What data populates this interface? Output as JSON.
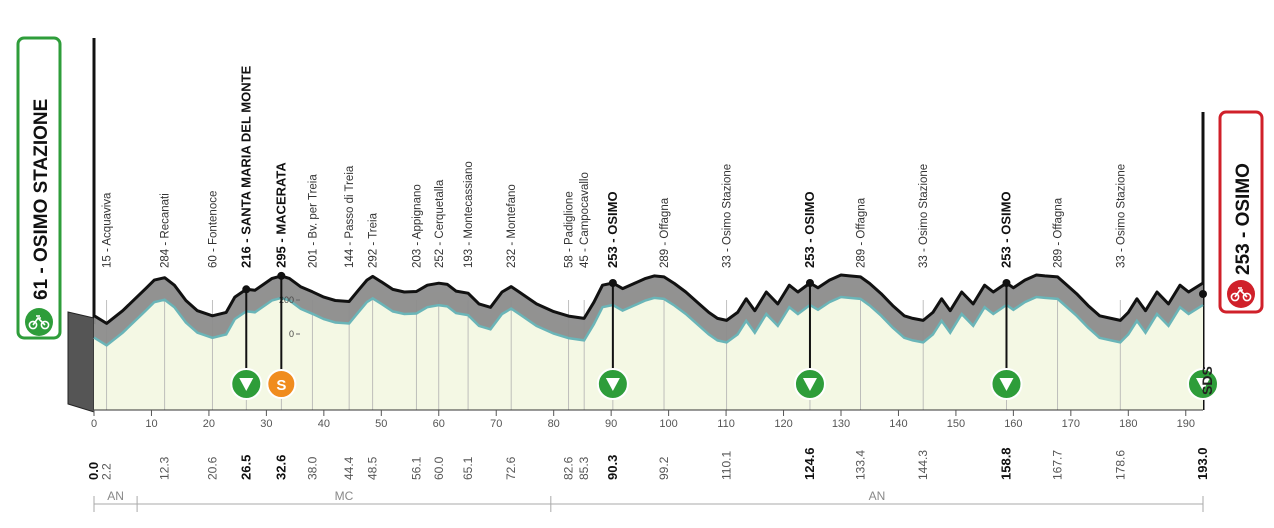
{
  "start": {
    "label": "61 - OSIMO STAZIONE",
    "color": "#2e9d3a"
  },
  "finish": {
    "label": "253 - OSIMO",
    "color": "#d0202a"
  },
  "logo": "SDS",
  "icons": {
    "start": "bicycle-icon",
    "finish": "bicycle-icon",
    "sprint": "sprint-s-icon",
    "intermediate": "triangle-down-icon"
  },
  "sprint_letter": "S",
  "colors": {
    "profile": "#8c8c8c",
    "profile_light": "#c9c9c9",
    "fill_green": "#f4f8e4",
    "teal": "#6ab5b8",
    "sprint_orange": "#f08c1e"
  },
  "chart_data": {
    "type": "area",
    "xlabel": "",
    "ylabel": "",
    "xlim": [
      0,
      193
    ],
    "y_ticks": [
      0,
      200
    ],
    "x_ticks": [
      0,
      10,
      20,
      30,
      40,
      50,
      60,
      70,
      80,
      90,
      100,
      110,
      120,
      130,
      140,
      150,
      160,
      170,
      180,
      190
    ],
    "distance_labels": [
      {
        "km": 0.0,
        "text": "0.0",
        "bold": true
      },
      {
        "km": 2.2,
        "text": "2.2",
        "bold": false
      },
      {
        "km": 12.3,
        "text": "12.3",
        "bold": false
      },
      {
        "km": 20.6,
        "text": "20.6",
        "bold": false
      },
      {
        "km": 26.5,
        "text": "26.5",
        "bold": true
      },
      {
        "km": 32.6,
        "text": "32.6",
        "bold": true
      },
      {
        "km": 38.0,
        "text": "38.0",
        "bold": false
      },
      {
        "km": 44.4,
        "text": "44.4",
        "bold": false
      },
      {
        "km": 48.5,
        "text": "48.5",
        "bold": false
      },
      {
        "km": 56.1,
        "text": "56.1",
        "bold": false
      },
      {
        "km": 60.0,
        "text": "60.0",
        "bold": false
      },
      {
        "km": 65.1,
        "text": "65.1",
        "bold": false
      },
      {
        "km": 72.6,
        "text": "72.6",
        "bold": false
      },
      {
        "km": 82.6,
        "text": "82.6",
        "bold": false
      },
      {
        "km": 85.3,
        "text": "85.3",
        "bold": false
      },
      {
        "km": 90.3,
        "text": "90.3",
        "bold": true
      },
      {
        "km": 99.2,
        "text": "99.2",
        "bold": false
      },
      {
        "km": 110.1,
        "text": "110.1",
        "bold": false
      },
      {
        "km": 124.6,
        "text": "124.6",
        "bold": true
      },
      {
        "km": 133.4,
        "text": "133.4",
        "bold": false
      },
      {
        "km": 144.3,
        "text": "144.3",
        "bold": false
      },
      {
        "km": 158.8,
        "text": "158.8",
        "bold": true
      },
      {
        "km": 167.7,
        "text": "167.7",
        "bold": false
      },
      {
        "km": 178.6,
        "text": "178.6",
        "bold": false
      },
      {
        "km": 193.0,
        "text": "193.0",
        "bold": true
      }
    ],
    "waypoints": [
      {
        "km": 2.2,
        "text": "15 - Acquaviva",
        "bold": false
      },
      {
        "km": 12.3,
        "text": "284 - Recanati",
        "bold": false
      },
      {
        "km": 20.6,
        "text": "60 - Fontenoce",
        "bold": false
      },
      {
        "km": 26.5,
        "text": "216 - SANTA MARIA DEL MONTE",
        "bold": true
      },
      {
        "km": 32.6,
        "text": "295 - MACERATA",
        "bold": true
      },
      {
        "km": 38.0,
        "text": "201 - Bv. per Treia",
        "bold": false
      },
      {
        "km": 44.4,
        "text": "144 - Passo di Treia",
        "bold": false
      },
      {
        "km": 48.5,
        "text": "292 - Treia",
        "bold": false
      },
      {
        "km": 56.1,
        "text": "203 - Appignano",
        "bold": false
      },
      {
        "km": 60.0,
        "text": "252 - Cerquetalla",
        "bold": false
      },
      {
        "km": 65.1,
        "text": "193 - Montecassiano",
        "bold": false
      },
      {
        "km": 72.6,
        "text": "232 - Montefano",
        "bold": false
      },
      {
        "km": 82.6,
        "text": "58 - Padiglione",
        "bold": false
      },
      {
        "km": 85.3,
        "text": "45 - Campocavallo",
        "bold": false
      },
      {
        "km": 90.3,
        "text": "253 - OSIMO",
        "bold": true
      },
      {
        "km": 99.2,
        "text": "289 - Offagna",
        "bold": false
      },
      {
        "km": 110.1,
        "text": "33 - Osimo Stazione",
        "bold": false
      },
      {
        "km": 124.6,
        "text": "253 - OSIMO",
        "bold": true
      },
      {
        "km": 133.4,
        "text": "289 - Offagna",
        "bold": false
      },
      {
        "km": 144.3,
        "text": "33 - Osimo Stazione",
        "bold": false
      },
      {
        "km": 158.8,
        "text": "253 - OSIMO",
        "bold": true
      },
      {
        "km": 167.7,
        "text": "289 - Offagna",
        "bold": false
      },
      {
        "km": 178.6,
        "text": "33 - Osimo Stazione",
        "bold": false
      }
    ],
    "intermediate_markers": [
      {
        "km": 26.5,
        "kind": "intermediate"
      },
      {
        "km": 32.6,
        "kind": "sprint"
      },
      {
        "km": 90.3,
        "kind": "intermediate"
      },
      {
        "km": 124.6,
        "kind": "intermediate"
      },
      {
        "km": 158.8,
        "kind": "intermediate"
      },
      {
        "km": 193.0,
        "kind": "intermediate"
      }
    ],
    "provinces": [
      {
        "from_km": 0,
        "to_km": 7.5,
        "text": "AN"
      },
      {
        "from_km": 7.5,
        "to_km": 79.5,
        "text": "MC"
      },
      {
        "from_km": 79.5,
        "to_km": 193,
        "text": "AN"
      }
    ],
    "profile": [
      [
        0,
        61
      ],
      [
        2.2,
        15
      ],
      [
        5,
        90
      ],
      [
        9,
        220
      ],
      [
        10.5,
        270
      ],
      [
        12.3,
        284
      ],
      [
        14,
        240
      ],
      [
        16,
        150
      ],
      [
        18,
        90
      ],
      [
        20.6,
        60
      ],
      [
        23,
        80
      ],
      [
        24.5,
        170
      ],
      [
        26.5,
        216
      ],
      [
        28,
        210
      ],
      [
        29.5,
        245
      ],
      [
        31,
        280
      ],
      [
        32.6,
        295
      ],
      [
        34,
        280
      ],
      [
        36,
        230
      ],
      [
        38,
        201
      ],
      [
        40,
        170
      ],
      [
        42,
        150
      ],
      [
        44.4,
        144
      ],
      [
        46,
        210
      ],
      [
        47.5,
        270
      ],
      [
        48.5,
        292
      ],
      [
        50,
        260
      ],
      [
        52,
        215
      ],
      [
        54,
        200
      ],
      [
        56.1,
        203
      ],
      [
        58,
        240
      ],
      [
        60,
        252
      ],
      [
        61.5,
        245
      ],
      [
        63,
        205
      ],
      [
        65.1,
        193
      ],
      [
        67,
        130
      ],
      [
        69,
        110
      ],
      [
        71,
        200
      ],
      [
        72.6,
        232
      ],
      [
        74,
        200
      ],
      [
        77,
        130
      ],
      [
        80,
        85
      ],
      [
        82.6,
        58
      ],
      [
        85.3,
        45
      ],
      [
        87,
        140
      ],
      [
        88.5,
        240
      ],
      [
        90.3,
        253
      ],
      [
        92,
        220
      ],
      [
        94,
        250
      ],
      [
        96,
        280
      ],
      [
        97.5,
        295
      ],
      [
        99.2,
        289
      ],
      [
        101,
        250
      ],
      [
        103,
        200
      ],
      [
        105,
        140
      ],
      [
        107,
        80
      ],
      [
        108.5,
        45
      ],
      [
        110.1,
        33
      ],
      [
        112,
        80
      ],
      [
        113.5,
        160
      ],
      [
        115,
        90
      ],
      [
        117,
        200
      ],
      [
        119,
        130
      ],
      [
        121,
        240
      ],
      [
        122.5,
        200
      ],
      [
        124.6,
        253
      ],
      [
        126,
        225
      ],
      [
        128,
        270
      ],
      [
        130,
        300
      ],
      [
        131.5,
        295
      ],
      [
        133.4,
        289
      ],
      [
        135,
        250
      ],
      [
        137,
        190
      ],
      [
        139,
        120
      ],
      [
        141,
        60
      ],
      [
        142.5,
        45
      ],
      [
        144.3,
        33
      ],
      [
        146,
        80
      ],
      [
        147.5,
        160
      ],
      [
        149,
        90
      ],
      [
        151,
        200
      ],
      [
        153,
        130
      ],
      [
        155,
        240
      ],
      [
        156.5,
        200
      ],
      [
        158.8,
        253
      ],
      [
        160,
        225
      ],
      [
        162,
        270
      ],
      [
        164,
        300
      ],
      [
        165.5,
        295
      ],
      [
        167.7,
        289
      ],
      [
        169,
        250
      ],
      [
        171,
        190
      ],
      [
        173,
        120
      ],
      [
        175,
        60
      ],
      [
        177,
        45
      ],
      [
        178.6,
        33
      ],
      [
        180,
        80
      ],
      [
        181.5,
        160
      ],
      [
        183,
        90
      ],
      [
        185,
        200
      ],
      [
        187,
        130
      ],
      [
        189,
        240
      ],
      [
        190.5,
        200
      ],
      [
        193,
        253
      ]
    ]
  }
}
